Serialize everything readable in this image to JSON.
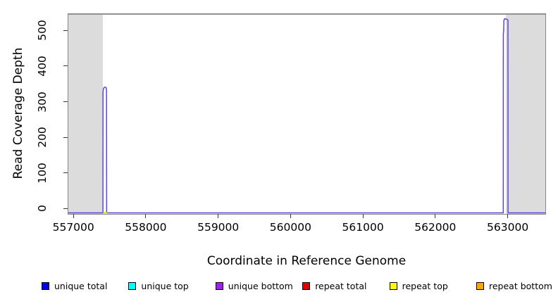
{
  "chart_data": {
    "type": "line",
    "title": "",
    "xlabel": "Coordinate in Reference Genome",
    "ylabel": "Read Coverage Depth",
    "xlim": [
      556930,
      563520
    ],
    "ylim": [
      -13,
      546
    ],
    "xticks": [
      557000,
      558000,
      559000,
      560000,
      561000,
      562000,
      563000
    ],
    "yticks": [
      0,
      100,
      200,
      300,
      400,
      500
    ],
    "grid": false,
    "legend_position": "bottom",
    "frame_color": "#878787",
    "shade_color": "#dcdcdc",
    "shaded_regions": [
      {
        "name": "left-flank",
        "x0": 556930,
        "x1": 557402
      },
      {
        "name": "right-flank",
        "x0": 562972,
        "x1": 563520
      }
    ],
    "series": [
      {
        "name": "unique-bottom-coverage",
        "color": "#5f45dc",
        "width": 1.5,
        "points": [
          [
            556930,
            0
          ],
          [
            557408,
            0
          ],
          [
            557409,
            328
          ],
          [
            557415,
            339
          ],
          [
            557431,
            343
          ],
          [
            557452,
            342
          ],
          [
            557458,
            334
          ],
          [
            557460,
            0
          ],
          [
            562939,
            0
          ],
          [
            562940,
            492
          ],
          [
            562945,
            500
          ],
          [
            562948,
            530
          ],
          [
            562958,
            535
          ],
          [
            562997,
            533
          ],
          [
            563004,
            530
          ],
          [
            563005,
            0
          ],
          [
            563520,
            0
          ]
        ]
      },
      {
        "name": "repeat-top-segment",
        "color": "#d9d900",
        "width": 2,
        "points": [
          [
            557413,
            0
          ],
          [
            557468,
            0
          ]
        ]
      }
    ],
    "legend": [
      {
        "label": "unique total",
        "color": "#0000ee"
      },
      {
        "label": "unique top",
        "color": "#00ffff"
      },
      {
        "label": "unique bottom",
        "color": "#a020f0"
      },
      {
        "label": "repeat total",
        "color": "#e00000"
      },
      {
        "label": "repeat top",
        "color": "#ffff00"
      },
      {
        "label": "repeat bottom",
        "color": "#ffa500"
      }
    ]
  }
}
